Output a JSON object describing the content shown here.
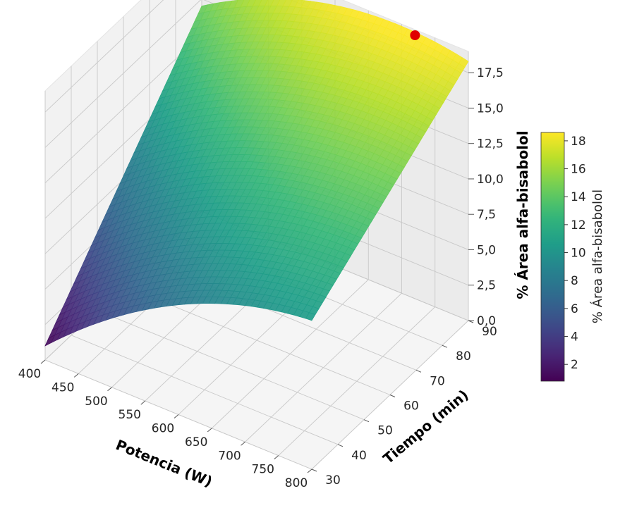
{
  "chart_data": {
    "type": "surface3d",
    "colormap": "viridis",
    "xlabel": "Potencia (W)",
    "ylabel": "Tiempo (min)",
    "zlabel": "% Área alfa-bisabolol",
    "x_ticks": [
      "400",
      "450",
      "500",
      "550",
      "600",
      "650",
      "700",
      "750",
      "800"
    ],
    "y_ticks": [
      "30",
      "40",
      "50",
      "60",
      "70",
      "80",
      "90"
    ],
    "z_ticks": [
      "0,0",
      "2,5",
      "5,0",
      "7,5",
      "10,0",
      "12,5",
      "15,0",
      "17,5"
    ],
    "xlim": [
      400,
      800
    ],
    "ylim": [
      30,
      90
    ],
    "zlim": [
      0,
      19
    ],
    "surface_corners": [
      {
        "potencia": 400,
        "tiempo": 30,
        "area": 1.0
      },
      {
        "potencia": 800,
        "tiempo": 30,
        "area": 10.5
      },
      {
        "potencia": 400,
        "tiempo": 90,
        "area": 14.5
      },
      {
        "potencia": 800,
        "tiempo": 90,
        "area": 18.3
      }
    ],
    "optimum_point": {
      "potencia": 720,
      "tiempo": 90,
      "area": 18.6,
      "color": "#e00000"
    },
    "colorbar": {
      "label": "% Área alfa-bisabolol",
      "ticks": [
        "2",
        "4",
        "6",
        "8",
        "10",
        "12",
        "14",
        "16",
        "18"
      ],
      "range": [
        0.8,
        18.6
      ]
    }
  }
}
